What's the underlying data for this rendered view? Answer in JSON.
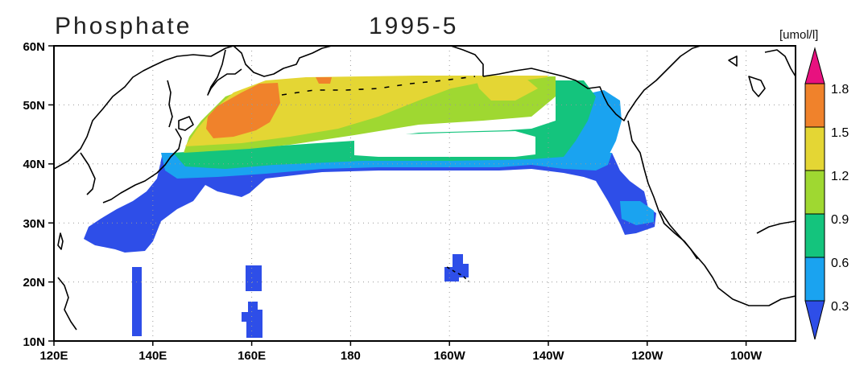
{
  "header": {
    "title": "Phosphate",
    "date": "1995-5",
    "unit": "[umol/l]"
  },
  "map": {
    "lat_ticks": [
      "60N",
      "50N",
      "40N",
      "30N",
      "20N",
      "10N"
    ],
    "lon_ticks": [
      "120E",
      "140E",
      "160E",
      "180",
      "160W",
      "140W",
      "120W",
      "100W"
    ],
    "extent": {
      "lon_min_east": 120,
      "lon_max_east": 270,
      "lat_min": 10,
      "lat_max": 60
    },
    "grid": "dotted"
  },
  "colorbar": {
    "levels": [
      "1.8",
      "1.5",
      "1.2",
      "0.9",
      "0.6",
      "0.3"
    ],
    "colors": [
      "#e8117f",
      "#f0822b",
      "#e4d634",
      "#9fd831",
      "#14c47d",
      "#1aa3f0",
      "#2e4ee8"
    ]
  }
}
